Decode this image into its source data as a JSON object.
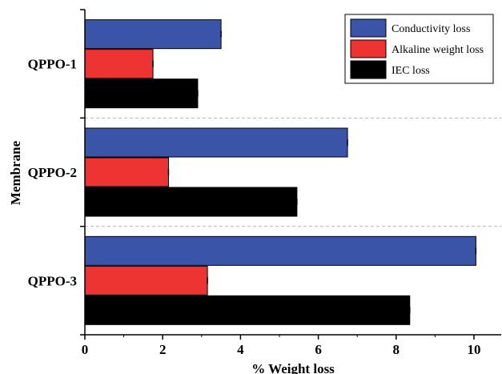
{
  "chart_data": {
    "type": "bar",
    "orientation": "horizontal",
    "categories": [
      "QPPO-1",
      "QPPO-2",
      "QPPO-3"
    ],
    "series": [
      {
        "name": "Conductivity loss",
        "color": "#3a55a8",
        "values": [
          3.5,
          6.75,
          10.05
        ]
      },
      {
        "name": "Alkaline weight loss",
        "color": "#ee3333",
        "values": [
          1.75,
          2.15,
          3.15
        ]
      },
      {
        "name": "IEC loss",
        "color": "#000000",
        "values": [
          2.9,
          5.45,
          8.35
        ]
      }
    ],
    "xlabel": "% Weight loss",
    "ylabel": "Membrane",
    "xlim": [
      0,
      10.7
    ],
    "xticks": [
      0,
      2,
      4,
      6,
      8,
      10
    ],
    "grid": "dashed separators between categories",
    "legend": "top-right"
  }
}
